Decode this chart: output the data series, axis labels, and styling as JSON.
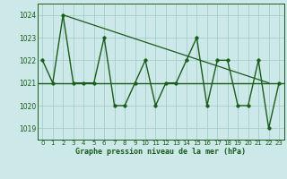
{
  "xlabel": "Graphe pression niveau de la mer (hPa)",
  "x": [
    0,
    1,
    2,
    3,
    4,
    5,
    6,
    7,
    8,
    9,
    10,
    11,
    12,
    13,
    14,
    15,
    16,
    17,
    18,
    19,
    20,
    21,
    22,
    23
  ],
  "y_main": [
    1022,
    1021,
    1024,
    1021,
    1021,
    1021,
    1023,
    1020,
    1020,
    1021,
    1022,
    1020,
    1021,
    1021,
    1022,
    1023,
    1020,
    1022,
    1022,
    1020,
    1020,
    1022,
    1019,
    1021
  ],
  "trend_x": [
    2,
    22
  ],
  "trend_y": [
    1024,
    1021
  ],
  "y_horizontal": 1021,
  "ylim": [
    1018.5,
    1024.5
  ],
  "xlim": [
    -0.5,
    23.5
  ],
  "yticks": [
    1019,
    1020,
    1021,
    1022,
    1023,
    1024
  ],
  "xticks": [
    0,
    1,
    2,
    3,
    4,
    5,
    6,
    7,
    8,
    9,
    10,
    11,
    12,
    13,
    14,
    15,
    16,
    17,
    18,
    19,
    20,
    21,
    22,
    23
  ],
  "line_color": "#1a5c1a",
  "bg_color": "#cce8e8",
  "grid_color": "#9ec8c8",
  "text_color": "#1a5c1a",
  "marker_size": 2.5,
  "line_width": 1.0
}
